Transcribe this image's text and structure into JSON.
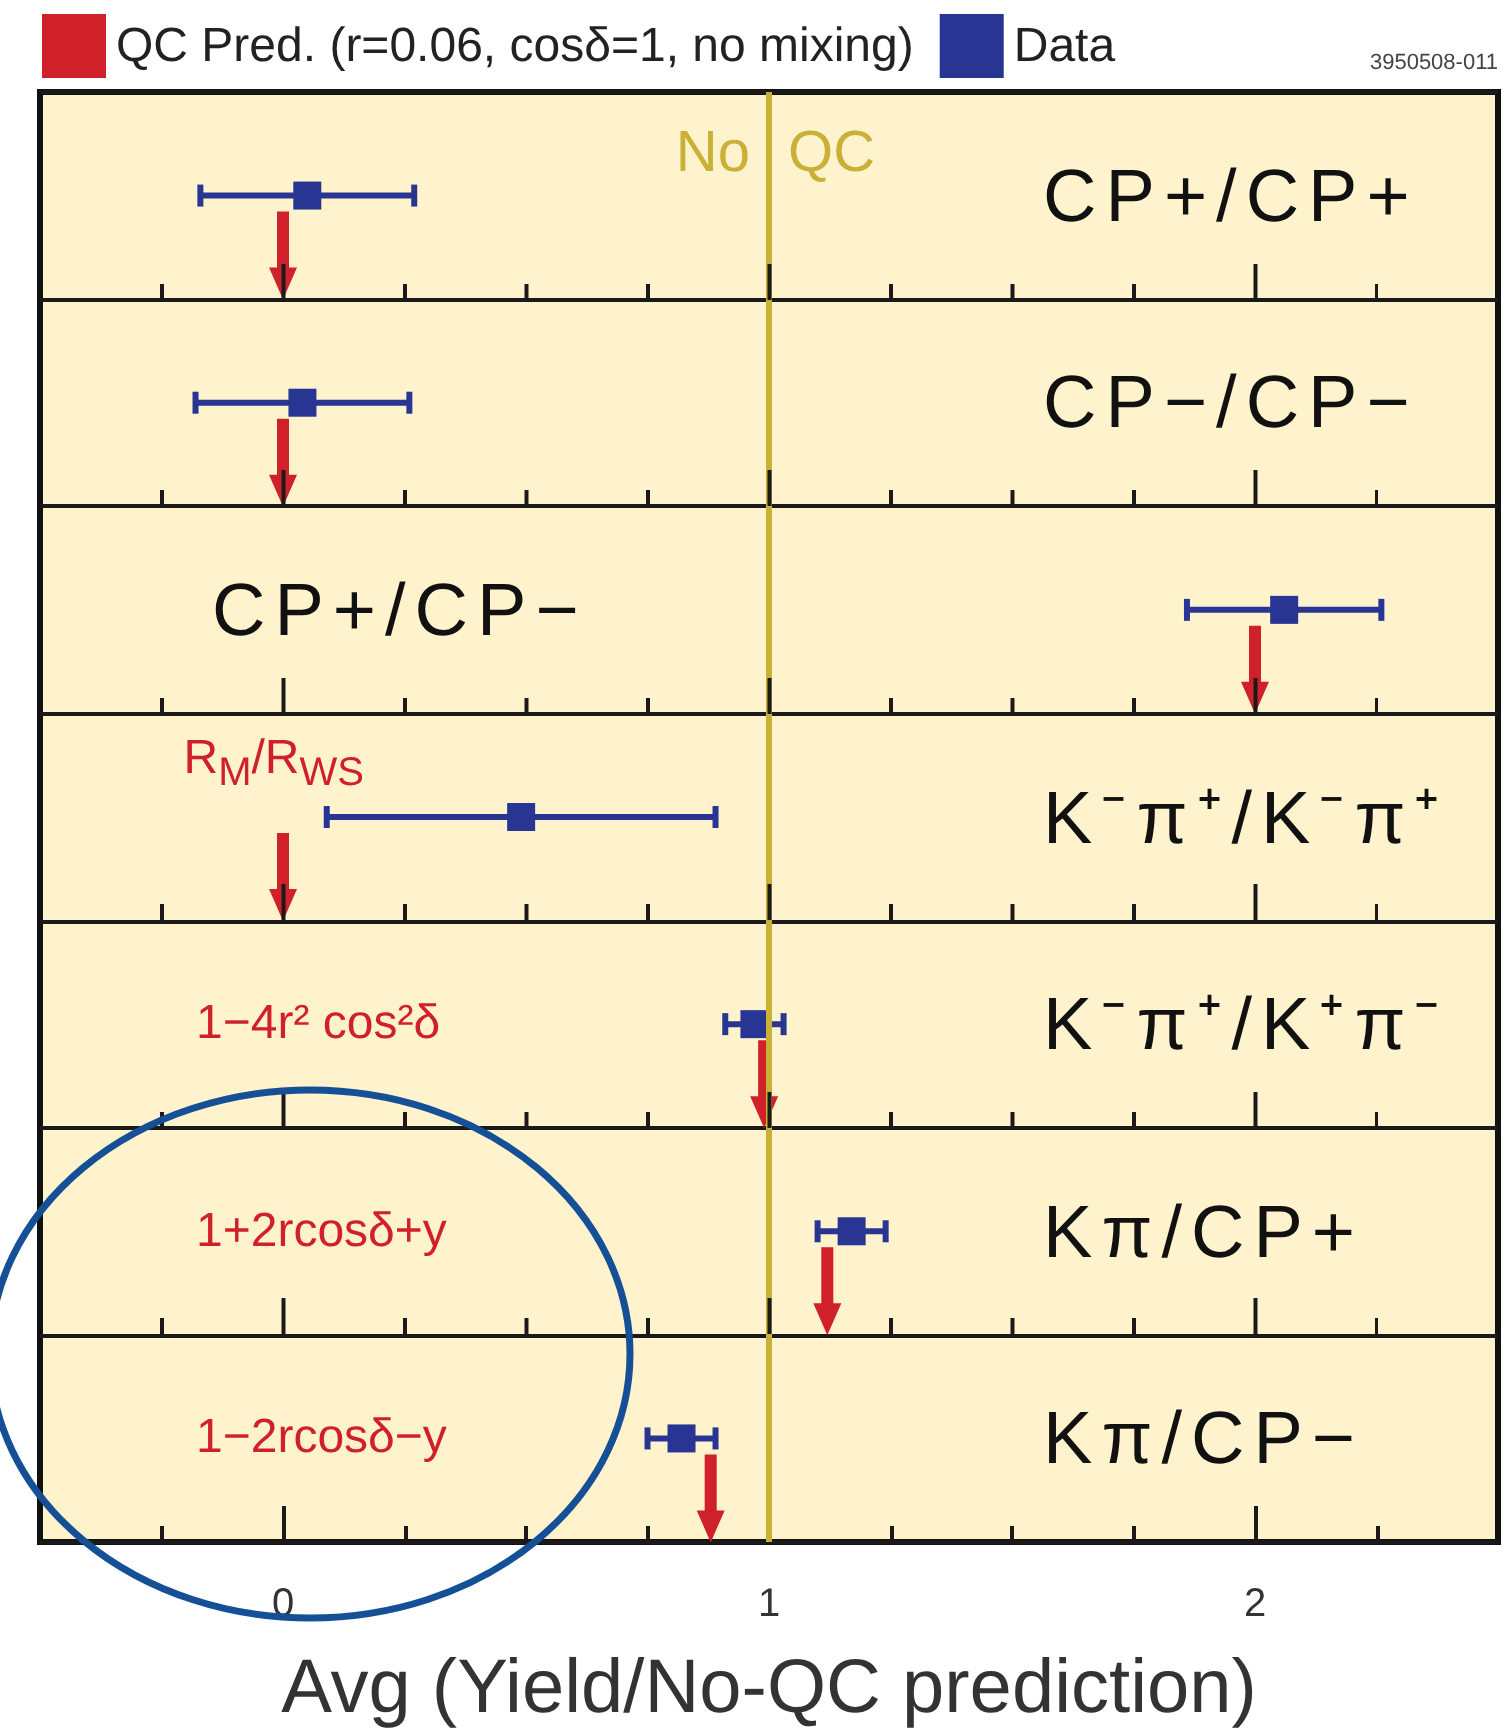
{
  "chart_data": {
    "type": "scatter",
    "orientation": "horizontal",
    "categories": [
      "CP+/CP+",
      "CP−/CP−",
      "CP+/CP−",
      "K⁻π⁺/K⁻π⁺",
      "K⁻π⁺/K⁺π⁻",
      "Kπ/CP+",
      "Kπ/CP−"
    ],
    "series": [
      {
        "name": "QC Pred. (r=0.06, cosδ=1, no mixing)",
        "color": "#d0202a",
        "marker": "triangle",
        "values": [
          0,
          0,
          2,
          0,
          0.99,
          1.12,
          0.88
        ]
      },
      {
        "name": "Data",
        "color": "#283593",
        "marker": "square",
        "values": [
          0.05,
          0.04,
          2.06,
          0.49,
          0.97,
          1.17,
          0.82
        ],
        "errors": [
          0.22,
          0.22,
          0.2,
          0.4,
          0.06,
          0.07,
          0.07
        ]
      }
    ],
    "xlabel": "Avg (Yield/No-QC prediction)",
    "xlim": [
      -0.5,
      2.5
    ],
    "xticks": [
      {
        "value": -0.25,
        "label": null
      },
      0,
      {
        "value": 0.25,
        "label": null
      },
      {
        "value": 0.5,
        "label": null
      },
      {
        "value": 0.75,
        "label": null
      },
      1,
      {
        "value": 1.25,
        "label": null
      },
      {
        "value": 1.5,
        "label": null
      },
      {
        "value": 1.75,
        "label": null
      },
      2,
      {
        "value": 2.25,
        "label": null
      }
    ],
    "grid": "y",
    "ref_lines": [
      {
        "axis": "x",
        "value": 1,
        "label": "No QC",
        "color": "#c9b037"
      }
    ],
    "annotations": [
      "3950508-011",
      {
        "text": "R$_{M}$/R$_{WS}$",
        "x": 0,
        "y": "K⁻π⁺/K⁻π⁺"
      },
      "1−4r² cos²δ",
      "1+2rcosδ+y",
      "1−2rcosδ−y"
    ],
    "legend": "top left"
  }
}
